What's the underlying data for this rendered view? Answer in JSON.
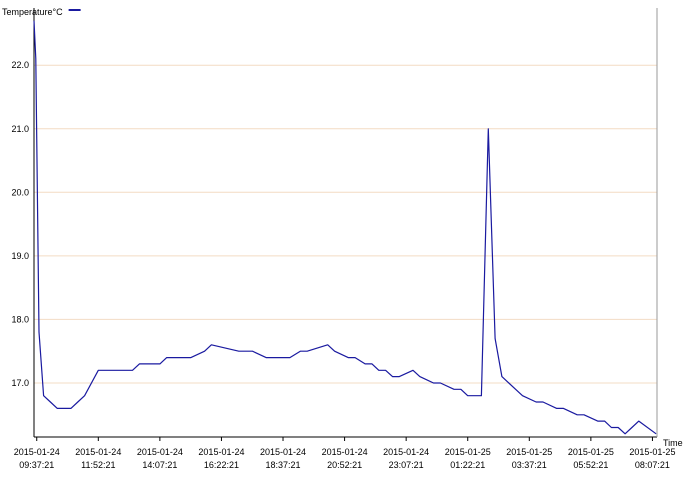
{
  "chart_data": {
    "type": "line",
    "ylabel": "Temperature°C",
    "xlabel": "Time",
    "ylim": [
      16.15,
      22.9
    ],
    "xlim": [
      "2015-01-24 09:31",
      "2015-01-25 08:17"
    ],
    "grid": "horizontal",
    "legend": "top-left",
    "colors": {
      "series": "#1a1aa0",
      "grid": "#f3dcc4",
      "axis": "#000000"
    },
    "y_ticks": [
      {
        "value": 17.0,
        "label": "17.0"
      },
      {
        "value": 18.0,
        "label": "18.0"
      },
      {
        "value": 19.0,
        "label": "19.0"
      },
      {
        "value": 20.0,
        "label": "20.0"
      },
      {
        "value": 21.0,
        "label": "21.0"
      },
      {
        "value": 22.0,
        "label": "22.0"
      }
    ],
    "x_ticks": [
      {
        "value": "2015-01-24 09:37",
        "date": "2015-01-24",
        "time": "09:37:21"
      },
      {
        "value": "2015-01-24 11:52",
        "date": "2015-01-24",
        "time": "11:52:21"
      },
      {
        "value": "2015-01-24 14:07",
        "date": "2015-01-24",
        "time": "14:07:21"
      },
      {
        "value": "2015-01-24 16:22",
        "date": "2015-01-24",
        "time": "16:22:21"
      },
      {
        "value": "2015-01-24 18:37",
        "date": "2015-01-24",
        "time": "18:37:21"
      },
      {
        "value": "2015-01-24 20:52",
        "date": "2015-01-24",
        "time": "20:52:21"
      },
      {
        "value": "2015-01-24 23:07",
        "date": "2015-01-24",
        "time": "23:07:21"
      },
      {
        "value": "2015-01-25 01:22",
        "date": "2015-01-25",
        "time": "01:22:21"
      },
      {
        "value": "2015-01-25 03:37",
        "date": "2015-01-25",
        "time": "03:37:21"
      },
      {
        "value": "2015-01-25 05:52",
        "date": "2015-01-25",
        "time": "05:52:21"
      },
      {
        "value": "2015-01-25 08:07",
        "date": "2015-01-25",
        "time": "08:07:21"
      }
    ],
    "series": [
      {
        "name": "",
        "x": [
          "2015-01-24 09:31",
          "2015-01-24 09:35",
          "2015-01-24 09:42",
          "2015-01-24 09:52",
          "2015-01-24 10:07",
          "2015-01-24 10:22",
          "2015-01-24 10:37",
          "2015-01-24 10:52",
          "2015-01-24 11:07",
          "2015-01-24 11:22",
          "2015-01-24 11:52",
          "2015-01-24 12:07",
          "2015-01-24 12:37",
          "2015-01-24 13:07",
          "2015-01-24 13:22",
          "2015-01-24 14:07",
          "2015-01-24 14:22",
          "2015-01-24 14:37",
          "2015-01-24 15:00",
          "2015-01-24 15:15",
          "2015-01-24 15:45",
          "2015-01-24 16:00",
          "2015-01-24 17:00",
          "2015-01-24 17:30",
          "2015-01-24 18:00",
          "2015-01-24 18:15",
          "2015-01-24 18:37",
          "2015-01-24 18:52",
          "2015-01-24 19:15",
          "2015-01-24 19:30",
          "2015-01-24 20:15",
          "2015-01-24 20:30",
          "2015-01-24 21:00",
          "2015-01-24 21:15",
          "2015-01-24 21:37",
          "2015-01-24 21:52",
          "2015-01-24 22:07",
          "2015-01-24 22:22",
          "2015-01-24 22:37",
          "2015-01-24 22:52",
          "2015-01-24 23:22",
          "2015-01-24 23:37",
          "2015-01-25 00:07",
          "2015-01-25 00:22",
          "2015-01-25 00:52",
          "2015-01-25 01:07",
          "2015-01-25 01:22",
          "2015-01-25 01:37",
          "2015-01-25 01:52",
          "2015-01-25 02:07",
          "2015-01-25 02:22",
          "2015-01-25 02:37",
          "2015-01-25 03:07",
          "2015-01-25 03:22",
          "2015-01-25 03:52",
          "2015-01-25 04:07",
          "2015-01-25 04:37",
          "2015-01-25 04:52",
          "2015-01-25 05:22",
          "2015-01-25 05:37",
          "2015-01-25 06:07",
          "2015-01-25 06:22",
          "2015-01-25 06:37",
          "2015-01-25 06:52",
          "2015-01-25 07:07",
          "2015-01-25 07:22",
          "2015-01-25 07:37",
          "2015-01-25 08:15"
        ],
        "y": [
          22.7,
          22.1,
          17.8,
          16.8,
          16.7,
          16.6,
          16.6,
          16.6,
          16.7,
          16.8,
          17.2,
          17.2,
          17.2,
          17.2,
          17.3,
          17.3,
          17.4,
          17.4,
          17.4,
          17.4,
          17.5,
          17.6,
          17.5,
          17.5,
          17.4,
          17.4,
          17.4,
          17.4,
          17.5,
          17.5,
          17.6,
          17.5,
          17.4,
          17.4,
          17.3,
          17.3,
          17.2,
          17.2,
          17.1,
          17.1,
          17.2,
          17.1,
          17.0,
          17.0,
          16.9,
          16.9,
          16.8,
          16.8,
          16.8,
          21.0,
          17.7,
          17.1,
          16.9,
          16.8,
          16.7,
          16.7,
          16.6,
          16.6,
          16.5,
          16.5,
          16.4,
          16.4,
          16.3,
          16.3,
          16.2,
          16.3,
          16.4,
          16.2
        ]
      }
    ]
  }
}
